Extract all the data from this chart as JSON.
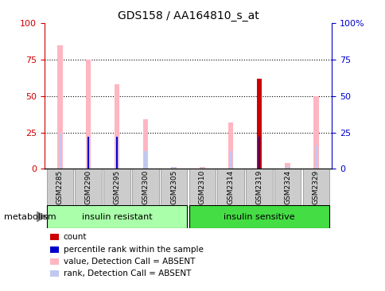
{
  "title": "GDS158 / AA164810_s_at",
  "samples": [
    "GSM2285",
    "GSM2290",
    "GSM2295",
    "GSM2300",
    "GSM2305",
    "GSM2310",
    "GSM2314",
    "GSM2319",
    "GSM2324",
    "GSM2329"
  ],
  "group1_label": "insulin resistant",
  "group2_label": "insulin sensitive",
  "factor_label": "metabolism",
  "pink_values": [
    85,
    75,
    58,
    34,
    1,
    1,
    32,
    0,
    4,
    50
  ],
  "light_blue_values": [
    25,
    22,
    22,
    12,
    1,
    1,
    12,
    22,
    2,
    16
  ],
  "red_values": [
    0,
    0,
    0,
    0,
    0,
    0,
    0,
    62,
    0,
    0
  ],
  "dark_blue_values": [
    0,
    22,
    22,
    0,
    0,
    0,
    0,
    22,
    0,
    0
  ],
  "ylim": [
    0,
    100
  ],
  "yticks": [
    0,
    25,
    50,
    75,
    100
  ],
  "ytick_labels_left": [
    "0",
    "25",
    "50",
    "75",
    "100"
  ],
  "ytick_labels_right": [
    "0",
    "25",
    "50",
    "75",
    "100%"
  ],
  "hline_values": [
    25,
    50,
    75
  ],
  "bar_width": 0.18,
  "pink_bar_width": 0.18,
  "lb_bar_width": 0.1,
  "db_bar_width": 0.06,
  "pink_color": "#FFB6C1",
  "light_blue_color": "#C0C8F0",
  "red_color": "#CC0000",
  "dark_blue_color": "#0000CC",
  "left_axis_color": "#CC0000",
  "right_axis_color": "#0000CC",
  "group1_color": "#AAFFAA",
  "group2_color": "#44DD44",
  "tick_bg_color": "#CCCCCC",
  "legend_items": [
    {
      "color": "#CC0000",
      "label": "count"
    },
    {
      "color": "#0000CC",
      "label": "percentile rank within the sample"
    },
    {
      "color": "#FFB6C1",
      "label": "value, Detection Call = ABSENT"
    },
    {
      "color": "#C0C8F0",
      "label": "rank, Detection Call = ABSENT"
    }
  ]
}
